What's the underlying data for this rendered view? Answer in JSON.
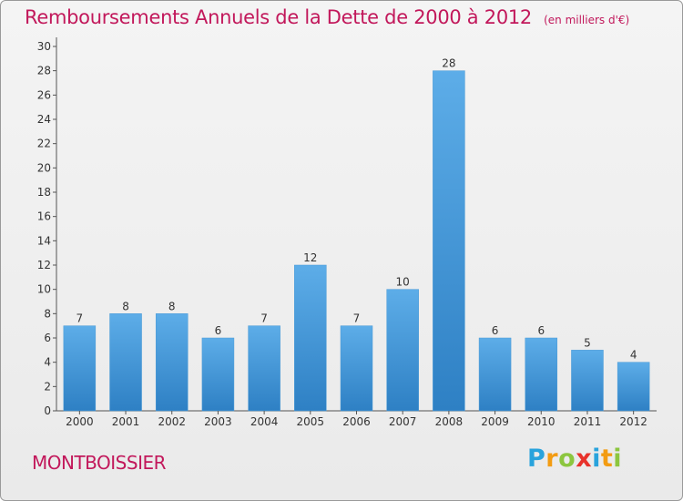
{
  "header": {
    "title": "Remboursements Annuels de la Dette de 2000 à 2012",
    "unit": "(en milliers d'€)"
  },
  "commune": "MONTBOISSIER",
  "logo": {
    "text": "Proxiti",
    "letters": [
      {
        "ch": "P",
        "color": "#29a3dc"
      },
      {
        "ch": "r",
        "color": "#f39c12"
      },
      {
        "ch": "o",
        "color": "#8cc63f"
      },
      {
        "ch": "x",
        "color": "#e8322b"
      },
      {
        "ch": "i",
        "color": "#29a3dc"
      },
      {
        "ch": "t",
        "color": "#f39c12"
      },
      {
        "ch": "i",
        "color": "#8cc63f"
      }
    ]
  },
  "chart_data": {
    "type": "bar",
    "title": "Remboursements Annuels de la Dette de 2000 à 2012",
    "unit": "(en milliers d'€)",
    "categories": [
      "2000",
      "2001",
      "2002",
      "2003",
      "2004",
      "2005",
      "2006",
      "2007",
      "2008",
      "2009",
      "2010",
      "2011",
      "2012"
    ],
    "values": [
      7,
      8,
      8,
      6,
      7,
      12,
      7,
      10,
      28,
      6,
      6,
      5,
      4
    ],
    "ylim": [
      0,
      30
    ],
    "yticks": [
      0,
      2,
      4,
      6,
      8,
      10,
      12,
      14,
      16,
      18,
      20,
      22,
      24,
      26,
      28,
      30
    ],
    "data_labels": true,
    "grid": false,
    "legend": "none",
    "colors": {
      "bar_light": "#5dade8",
      "bar_dark": "#2e80c4",
      "text": "#c2185b"
    }
  }
}
